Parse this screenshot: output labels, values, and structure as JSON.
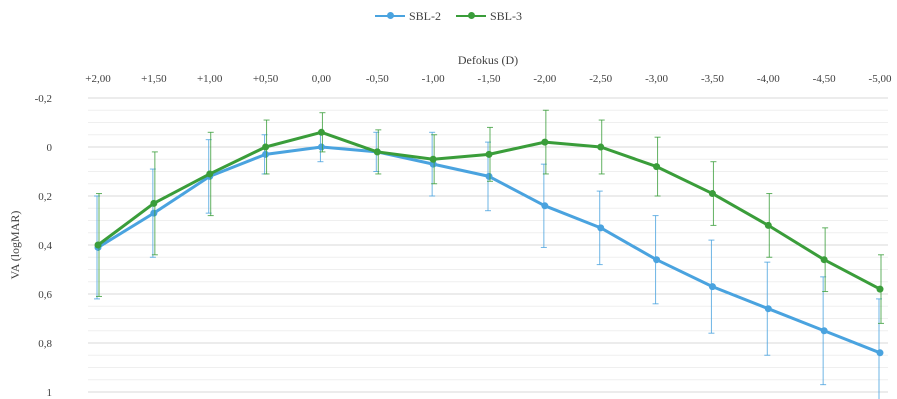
{
  "chart_data": {
    "type": "line",
    "xlabel": "Defokus (D)",
    "ylabel": "VA (logMAR)",
    "x_axis_position": "top",
    "y_inverted": true,
    "ylim": [
      -0.2,
      1
    ],
    "yticks": [
      -0.2,
      0,
      0.2,
      0.4,
      0.6,
      0.8,
      1
    ],
    "ytick_labels": [
      "-0,2",
      "0",
      "0,2",
      "0,4",
      "0,6",
      "0,8",
      "1"
    ],
    "grid": true,
    "legend_position": "top",
    "categories": [
      "+2,00",
      "+1,50",
      "+1,00",
      "+0,50",
      "0,00",
      "-0,50",
      "-1,00",
      "-1,50",
      "-2,00",
      "-2,50",
      "-3,00",
      "-3,50",
      "-4,00",
      "-4,50",
      "-5,00"
    ],
    "series": [
      {
        "name": "SBL-2",
        "color": "#4aa3df",
        "values": [
          0.41,
          0.27,
          0.12,
          0.03,
          0.0,
          0.02,
          0.07,
          0.12,
          0.24,
          0.33,
          0.46,
          0.57,
          0.66,
          0.75,
          0.84
        ],
        "error": [
          0.21,
          0.18,
          0.15,
          0.08,
          0.06,
          0.08,
          0.13,
          0.14,
          0.17,
          0.15,
          0.18,
          0.19,
          0.19,
          0.22,
          0.22
        ]
      },
      {
        "name": "SBL-3",
        "color": "#3a9d3a",
        "values": [
          0.4,
          0.23,
          0.11,
          0.0,
          -0.06,
          0.02,
          0.05,
          0.03,
          -0.02,
          0.0,
          0.08,
          0.19,
          0.32,
          0.46,
          0.58
        ],
        "error": [
          0.21,
          0.21,
          0.17,
          0.11,
          0.08,
          0.09,
          0.1,
          0.11,
          0.13,
          0.11,
          0.12,
          0.13,
          0.13,
          0.13,
          0.14
        ]
      }
    ]
  }
}
